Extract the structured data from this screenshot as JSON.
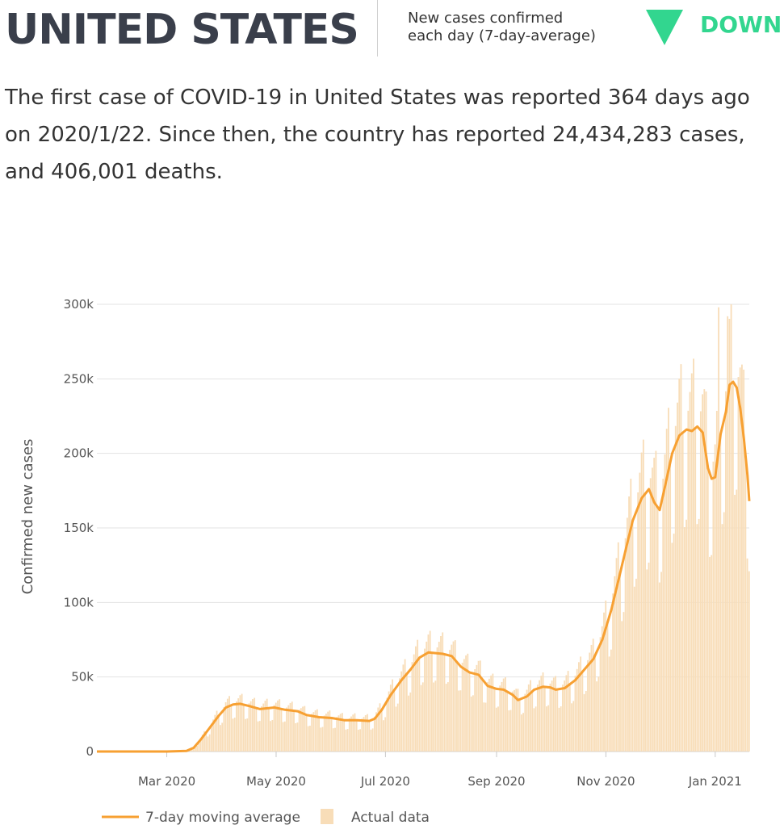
{
  "header": {
    "title": "UNITED STATES",
    "metric_label": "New cases confirmed\neach day (7-day-average)",
    "trend_label": "DOWN",
    "trend_icon": "down-triangle-icon",
    "trend_color": "#32d68f"
  },
  "summary": "The first case of COVID-19 in United States was reported 364 days ago on 2020/1/22. Since then, the country has reported 24,434,283 cases, and 406,001 deaths.",
  "chart_data": {
    "type": "line",
    "ylabel": "Confirmed new cases",
    "ylim": [
      0,
      300000
    ],
    "yticks": [
      0,
      50000,
      100000,
      150000,
      200000,
      250000,
      300000
    ],
    "ytick_labels": [
      "0",
      "50k",
      "100k",
      "150k",
      "200k",
      "250k",
      "300k"
    ],
    "xlim": [
      "2020-01-22",
      "2021-01-20"
    ],
    "xticks": [
      "2020-03-01",
      "2020-05-01",
      "2020-07-01",
      "2020-09-01",
      "2020-11-01",
      "2021-01-01"
    ],
    "xtick_labels": [
      "Mar 2020",
      "May 2020",
      "Jul 2020",
      "Sep 2020",
      "Nov 2020",
      "Jan 2021"
    ],
    "grid": true,
    "legend_position": "bottom",
    "line_color": "#f7a032",
    "bar_color": "#f8ddb8",
    "series": [
      {
        "name": "7-day moving average",
        "points": [
          [
            "2020-01-22",
            0
          ],
          [
            "2020-02-15",
            0
          ],
          [
            "2020-03-01",
            0
          ],
          [
            "2020-03-12",
            400
          ],
          [
            "2020-03-16",
            2500
          ],
          [
            "2020-03-20",
            8000
          ],
          [
            "2020-03-25",
            16000
          ],
          [
            "2020-03-30",
            24000
          ],
          [
            "2020-04-03",
            29500
          ],
          [
            "2020-04-07",
            31500
          ],
          [
            "2020-04-11",
            32000
          ],
          [
            "2020-04-16",
            30500
          ],
          [
            "2020-04-22",
            28500
          ],
          [
            "2020-04-30",
            29500
          ],
          [
            "2020-05-06",
            28000
          ],
          [
            "2020-05-13",
            27000
          ],
          [
            "2020-05-18",
            24500
          ],
          [
            "2020-05-25",
            23000
          ],
          [
            "2020-06-01",
            22500
          ],
          [
            "2020-06-08",
            21000
          ],
          [
            "2020-06-15",
            21000
          ],
          [
            "2020-06-22",
            20500
          ],
          [
            "2020-06-25",
            22000
          ],
          [
            "2020-06-29",
            28000
          ],
          [
            "2020-07-04",
            38000
          ],
          [
            "2020-07-10",
            48000
          ],
          [
            "2020-07-15",
            55000
          ],
          [
            "2020-07-20",
            63000
          ],
          [
            "2020-07-25",
            66500
          ],
          [
            "2020-08-02",
            65500
          ],
          [
            "2020-08-07",
            64000
          ],
          [
            "2020-08-12",
            57000
          ],
          [
            "2020-08-17",
            53000
          ],
          [
            "2020-08-22",
            51500
          ],
          [
            "2020-08-27",
            44000
          ],
          [
            "2020-09-01",
            42000
          ],
          [
            "2020-09-05",
            41500
          ],
          [
            "2020-09-10",
            38000
          ],
          [
            "2020-09-13",
            34500
          ],
          [
            "2020-09-18",
            37000
          ],
          [
            "2020-09-22",
            41500
          ],
          [
            "2020-09-27",
            43500
          ],
          [
            "2020-10-01",
            43000
          ],
          [
            "2020-10-04",
            41500
          ],
          [
            "2020-10-09",
            42500
          ],
          [
            "2020-10-15",
            48000
          ],
          [
            "2020-10-20",
            55000
          ],
          [
            "2020-10-25",
            62000
          ],
          [
            "2020-10-30",
            75000
          ],
          [
            "2020-11-04",
            95000
          ],
          [
            "2020-11-08",
            115000
          ],
          [
            "2020-11-12",
            135000
          ],
          [
            "2020-11-16",
            155000
          ],
          [
            "2020-11-21",
            170000
          ],
          [
            "2020-11-25",
            176000
          ],
          [
            "2020-11-28",
            167000
          ],
          [
            "2020-12-01",
            162000
          ],
          [
            "2020-12-04",
            178000
          ],
          [
            "2020-12-08",
            200000
          ],
          [
            "2020-12-12",
            212000
          ],
          [
            "2020-12-16",
            216000
          ],
          [
            "2020-12-19",
            215000
          ],
          [
            "2020-12-22",
            218000
          ],
          [
            "2020-12-25",
            214000
          ],
          [
            "2020-12-28",
            190000
          ],
          [
            "2020-12-30",
            183000
          ],
          [
            "2021-01-01",
            184000
          ],
          [
            "2021-01-04",
            213000
          ],
          [
            "2021-01-07",
            228000
          ],
          [
            "2021-01-09",
            246000
          ],
          [
            "2021-01-11",
            248000
          ],
          [
            "2021-01-13",
            244000
          ],
          [
            "2021-01-15",
            230000
          ],
          [
            "2021-01-17",
            210000
          ],
          [
            "2021-01-19",
            185000
          ],
          [
            "2021-01-20",
            168000
          ]
        ]
      },
      {
        "name": "Actual data"
      }
    ]
  }
}
